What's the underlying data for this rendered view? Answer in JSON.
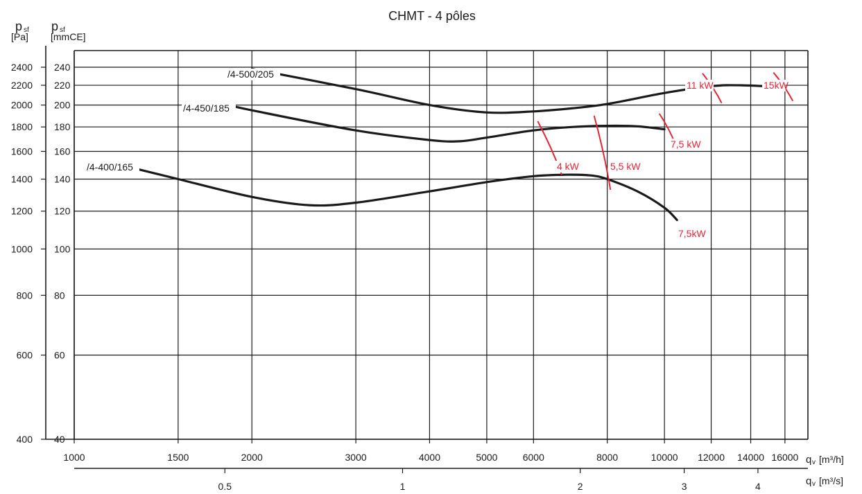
{
  "chart_data": {
    "type": "line",
    "title": "CHMT - 4 pôles",
    "y_axis_pa": {
      "label_main": "p",
      "label_sub": "sf",
      "unit": "[Pa]",
      "ticks": [
        "400",
        "600",
        "800",
        "1000",
        "1200",
        "1400",
        "1600",
        "1800",
        "2000",
        "2200",
        "2400"
      ]
    },
    "y_axis_mmce": {
      "label_main": "p",
      "label_sub": "sf",
      "unit": "[mmCE]",
      "ticks": [
        "40",
        "60",
        "80",
        "100",
        "120",
        "140",
        "160",
        "180",
        "200",
        "220",
        "240"
      ],
      "scale": "log",
      "range": [
        40,
        260
      ]
    },
    "x_axis_m3h": {
      "label_main": "q",
      "label_sub": "v",
      "unit": "[m³/h]",
      "ticks": [
        "1000",
        "1500",
        "2000",
        "3000",
        "4000",
        "5000",
        "6000",
        "8000",
        "10000",
        "12000",
        "14000",
        "16000"
      ],
      "scale": "log",
      "range": [
        1000,
        17500
      ]
    },
    "x_axis_m3s": {
      "label_main": "q",
      "label_sub": "v",
      "unit": "[m³/s]",
      "ticks": [
        "0.5",
        "1",
        "2",
        "3",
        "4"
      ]
    },
    "series": [
      {
        "name": "/4-400/165",
        "x": [
          1250,
          1500,
          2000,
          2500,
          3000,
          4000,
          5000,
          6000,
          6800,
          7500,
          8000,
          9000,
          10000,
          10500
        ],
        "y": [
          148,
          140,
          128.5,
          123.5,
          125,
          132,
          138,
          142,
          143,
          142.5,
          140,
          132,
          122,
          115
        ]
      },
      {
        "name": "/4-450/185",
        "x": [
          1800,
          2000,
          3000,
          4000,
          4500,
          5000,
          6000,
          7000,
          8000,
          9000,
          10000
        ],
        "y": [
          201,
          195,
          177,
          169,
          168,
          171,
          177,
          180,
          181,
          180.5,
          178
        ]
      },
      {
        "name": "/4-500/205",
        "x": [
          2000,
          3000,
          4000,
          5000,
          6000,
          7000,
          8000,
          10000,
          12000,
          13500,
          16000
        ],
        "y": [
          238,
          216,
          200,
          193,
          194,
          197,
          201,
          212,
          219,
          220,
          218
        ]
      }
    ],
    "power_lines": [
      {
        "label": "4 kW",
        "x": [
          6100,
          6700
        ],
        "y": [
          185,
          143
        ]
      },
      {
        "label": "5,5 kW",
        "x": [
          7600,
          8100
        ],
        "y": [
          190,
          133
        ]
      },
      {
        "label": "7,5 kW",
        "x": [
          9800,
          10450
        ],
        "y": [
          192,
          165
        ]
      },
      {
        "label": "11 kW",
        "x": [
          11600,
          12500
        ],
        "y": [
          233,
          202
        ]
      },
      {
        "label": "15kW",
        "x": [
          15300,
          16500
        ],
        "y": [
          234,
          204
        ]
      },
      {
        "label": "7,5kW",
        "x": [],
        "y": []
      }
    ]
  }
}
